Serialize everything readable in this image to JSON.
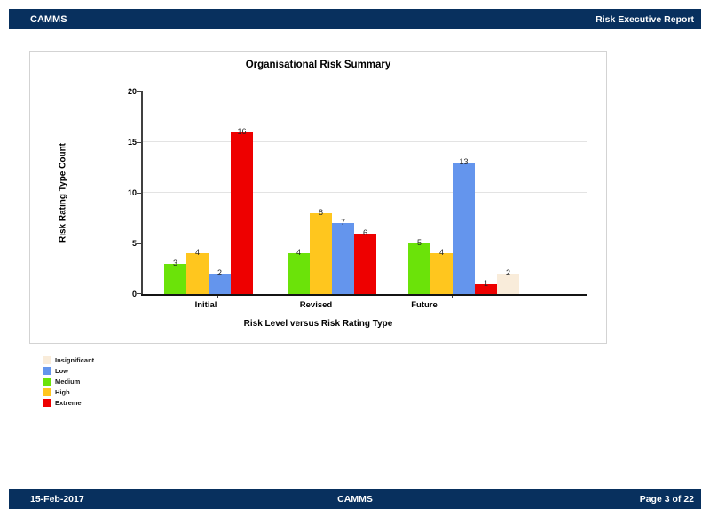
{
  "header": {
    "left": "CAMMS",
    "right": "Risk Executive Report"
  },
  "footer": {
    "left": "15-Feb-2017",
    "center": "CAMMS",
    "right": "Page 3 of 22"
  },
  "colors": {
    "navy_bar": "#08305E",
    "chart_border": "#D3D3D3",
    "gridline": "#E3E3E3",
    "axis": "#404040"
  },
  "chart_data": {
    "type": "bar",
    "title": "Organisational Risk Summary",
    "xlabel": "Risk Level versus Risk Rating Type",
    "ylabel": "Risk Rating Type Count",
    "categories": [
      "Initial",
      "Revised",
      "Future"
    ],
    "series": [
      {
        "name": "Insignificant",
        "color": "#F9ECDA",
        "values": [
          0,
          0,
          2
        ]
      },
      {
        "name": "Low",
        "color": "#6495ED",
        "values": [
          2,
          7,
          13
        ]
      },
      {
        "name": "Medium",
        "color": "#6BE309",
        "values": [
          3,
          4,
          5
        ]
      },
      {
        "name": "High",
        "color": "#FFC61E",
        "values": [
          4,
          8,
          4
        ]
      },
      {
        "name": "Extreme",
        "color": "#EE0000",
        "values": [
          16,
          6,
          1
        ]
      }
    ],
    "plot_order": [
      "Medium",
      "High",
      "Low",
      "Extreme",
      "Insignificant"
    ],
    "hide_zero_bars": true,
    "ylim": [
      0,
      20
    ],
    "yticks": [
      0,
      5,
      10,
      15,
      20
    ],
    "grid": true,
    "legend_position": "bottom-left",
    "legend_order": [
      "Insignificant",
      "Low",
      "Medium",
      "High",
      "Extreme"
    ]
  }
}
